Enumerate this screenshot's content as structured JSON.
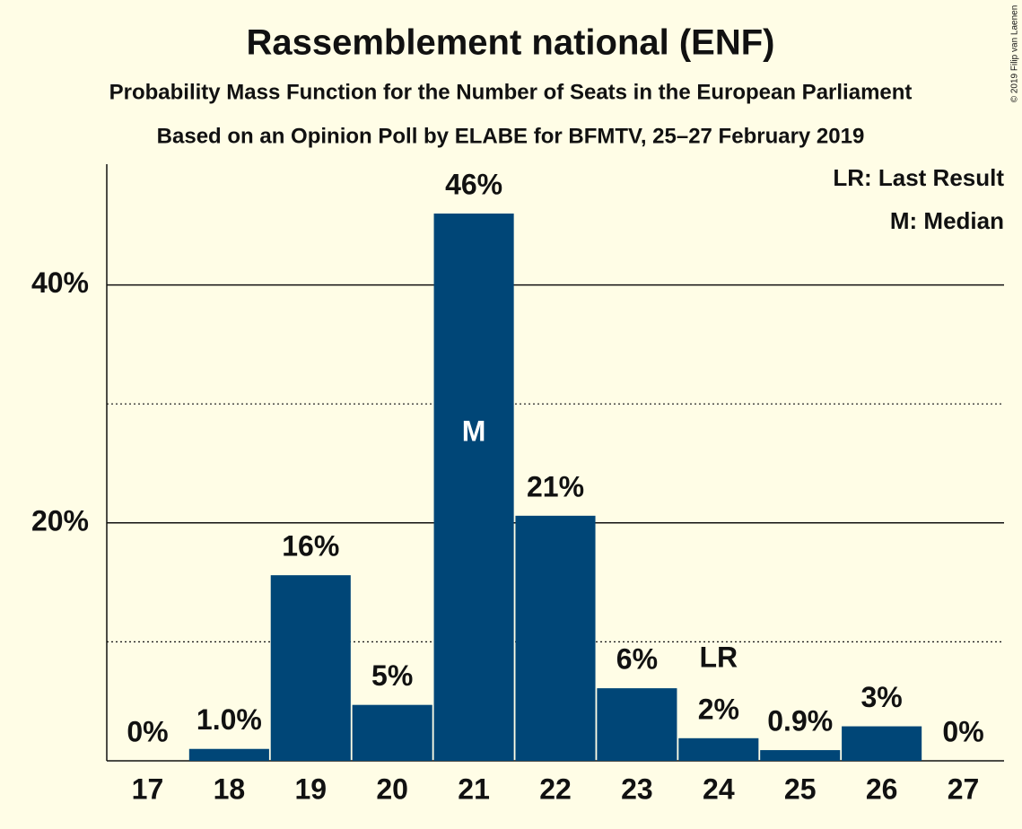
{
  "chart_data": {
    "type": "bar",
    "title": "Rassemblement national (ENF)",
    "subtitle": "Probability Mass Function for the Number of Seats in the European Parliament",
    "subtitle2": "Based on an Opinion Poll by ELABE for BFMTV, 25–27 February 2019",
    "copyright": "© 2019 Filip van Laenen",
    "categories": [
      "17",
      "18",
      "19",
      "20",
      "21",
      "22",
      "23",
      "24",
      "25",
      "26",
      "27"
    ],
    "values": [
      0,
      1.0,
      15.6,
      4.7,
      46.0,
      20.6,
      6.1,
      1.9,
      0.9,
      2.9,
      0
    ],
    "value_labels": [
      "0%",
      "1.0%",
      "16%",
      "5%",
      "46%",
      "21%",
      "6%",
      "2%",
      "0.9%",
      "3%",
      "0%"
    ],
    "color": "#004677",
    "ylim": [
      0,
      50
    ],
    "yticks": [
      {
        "value": 20,
        "label": "20%"
      },
      {
        "value": 40,
        "label": "40%"
      }
    ],
    "minor_yticks": [
      10,
      30
    ],
    "grid": true,
    "annotations": [
      {
        "text": "M",
        "x": "21"
      },
      {
        "text": "LR",
        "x": "24"
      }
    ],
    "legend": [
      "LR: Last Result",
      "M: Median"
    ],
    "legend_position": "upper right"
  }
}
